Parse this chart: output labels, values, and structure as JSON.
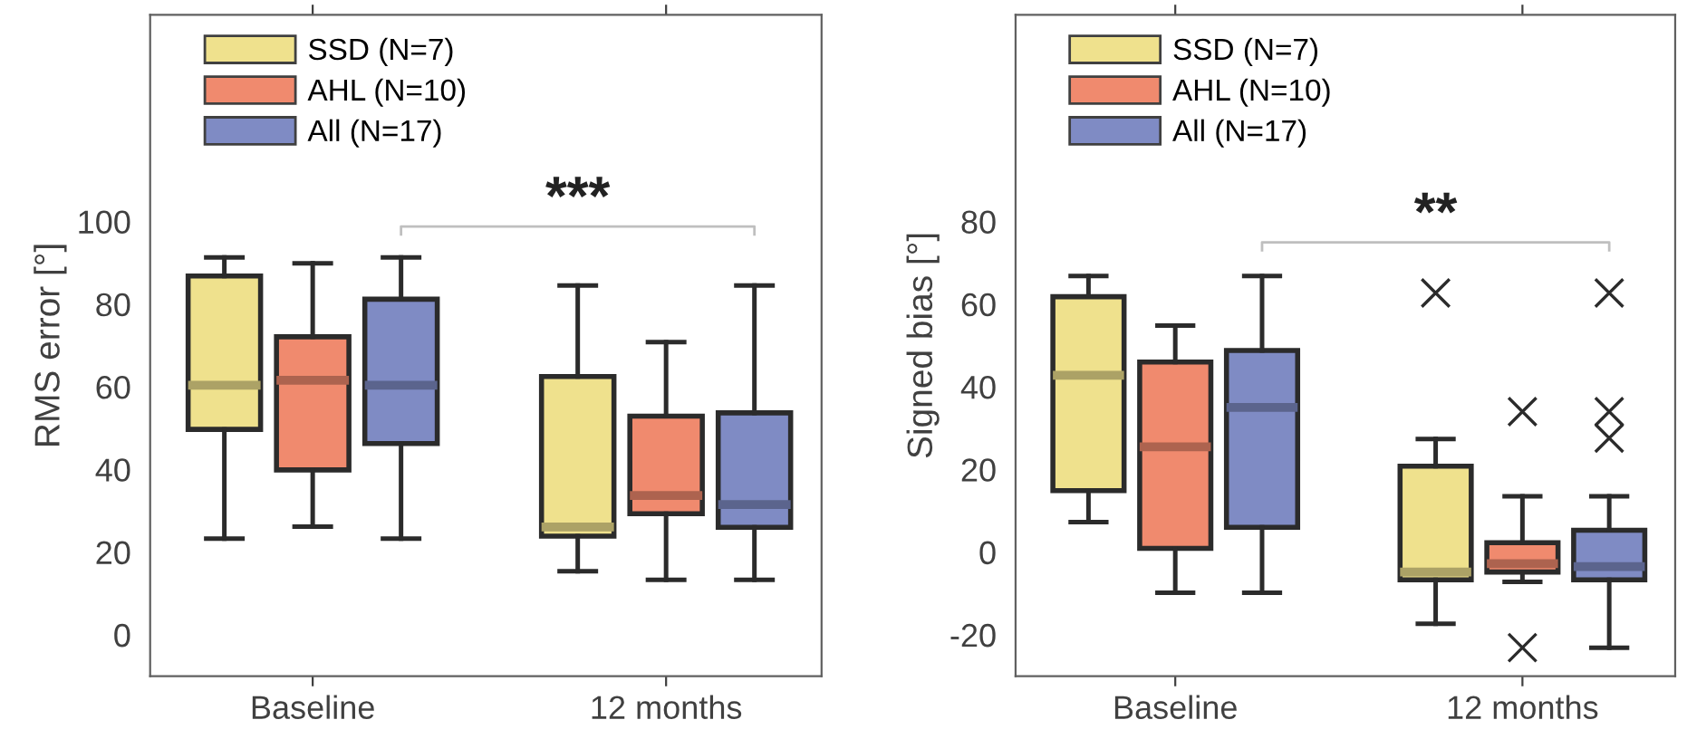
{
  "chart_data": [
    {
      "type": "box",
      "ylabel": "RMS error [°]",
      "categories": [
        "Baseline",
        "12 months"
      ],
      "ylim": [
        -10,
        150
      ],
      "yticks": [
        0,
        20,
        40,
        60,
        80,
        100
      ],
      "legend": "top left",
      "grid": false,
      "marker": "cross",
      "annotations": [
        "***"
      ],
      "series": [
        {
          "name": "SSD (N=7)",
          "color": "#efe18d",
          "boxes": [
            {
              "low": 23.3,
              "q1": 49.7,
              "median": 60.4,
              "q3": 86.8,
              "high": 91.3
            },
            {
              "low": 15.4,
              "q1": 23.9,
              "median": 26.1,
              "q3": 62.5,
              "high": 84.5
            }
          ]
        },
        {
          "name": "AHL (N=10)",
          "color": "#f08a6e",
          "boxes": [
            {
              "low": 26.2,
              "q1": 39.9,
              "median": 61.6,
              "q3": 72.1,
              "high": 89.9
            },
            {
              "low": 13.3,
              "q1": 29.3,
              "median": 33.7,
              "q3": 52.9,
              "high": 70.8
            }
          ]
        },
        {
          "name": "All (N=17)",
          "color": "#7f8bc4",
          "boxes": [
            {
              "low": 23.3,
              "q1": 46.3,
              "median": 60.4,
              "q3": 81.2,
              "high": 91.3
            },
            {
              "low": 13.3,
              "q1": 26.0,
              "median": 31.5,
              "q3": 53.7,
              "high": 84.5
            }
          ]
        }
      ]
    },
    {
      "type": "box",
      "ylabel": "Signed bias [°]",
      "categories": [
        "Baseline",
        "12 months"
      ],
      "ylim": [
        -30,
        130
      ],
      "yticks": [
        -20,
        0,
        20,
        40,
        60,
        80
      ],
      "legend": "top left",
      "grid": false,
      "marker": "cross",
      "annotations": [
        "**"
      ],
      "series": [
        {
          "name": "SSD (N=7)",
          "color": "#efe18d",
          "boxes": [
            {
              "low": 7.3,
              "q1": 14.9,
              "median": 42.8,
              "q3": 61.8,
              "high": 66.8
            },
            {
              "low": -17.3,
              "q1": -6.7,
              "median": -4.8,
              "q3": 20.8,
              "high": 27.4,
              "outliers": [
                62.7
              ]
            }
          ]
        },
        {
          "name": "AHL (N=10)",
          "color": "#f08a6e",
          "boxes": [
            {
              "low": -9.8,
              "q1": 0.9,
              "median": 25.5,
              "q3": 46.0,
              "high": 54.8
            },
            {
              "low": -7.2,
              "q1": -4.8,
              "median": -2.8,
              "q3": 2.3,
              "high": 13.5,
              "outliers": [
                34.0,
                -23.1
              ]
            }
          ]
        },
        {
          "name": "All (N=17)",
          "color": "#7f8bc4",
          "boxes": [
            {
              "low": -9.8,
              "q1": 6.0,
              "median": 35.0,
              "q3": 48.8,
              "high": 66.8
            },
            {
              "low": -23.1,
              "q1": -6.7,
              "median": -3.5,
              "q3": 5.3,
              "high": 13.5,
              "outliers": [
                62.7,
                34.0,
                27.6
              ]
            }
          ]
        }
      ]
    }
  ]
}
